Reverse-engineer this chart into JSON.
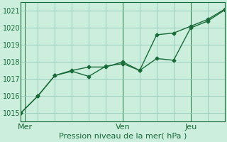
{
  "title": "Pression niveau de la mer( hPa )",
  "background_color": "#cceedd",
  "plot_bg_color": "#cceedd",
  "grid_color": "#99ccbb",
  "line_color": "#1a6b3a",
  "ylim": [
    1014.5,
    1021.5
  ],
  "yticks": [
    1015,
    1016,
    1017,
    1018,
    1019,
    1020,
    1021
  ],
  "day_labels": [
    "Mer",
    "Ven",
    "Jeu"
  ],
  "day_positions": [
    0.5,
    12,
    20
  ],
  "xlim": [
    0,
    24
  ],
  "xtick_minor_count": 13,
  "line1_x": [
    0,
    2,
    4,
    6,
    8,
    10,
    12,
    14,
    16,
    18,
    20,
    22,
    24
  ],
  "line1_y": [
    1015.0,
    1016.0,
    1017.2,
    1017.45,
    1017.15,
    1017.75,
    1017.9,
    1017.5,
    1018.2,
    1018.1,
    1020.0,
    1020.4,
    1021.05
  ],
  "line2_x": [
    0,
    2,
    4,
    6,
    8,
    10,
    12,
    14,
    16,
    18,
    20,
    22,
    24
  ],
  "line2_y": [
    1015.0,
    1016.0,
    1017.2,
    1017.5,
    1017.7,
    1017.7,
    1018.0,
    1017.5,
    1019.6,
    1019.7,
    1020.1,
    1020.5,
    1021.1
  ],
  "xlabel_fontsize": 8,
  "tick_fontsize": 7,
  "label_fontsize": 8
}
